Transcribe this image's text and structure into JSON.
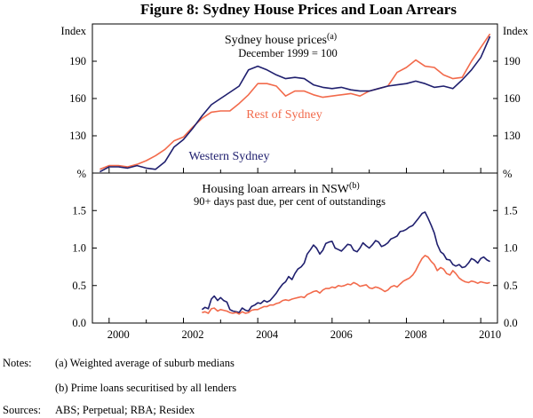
{
  "figure": {
    "title": "Figure 8: Sydney House Prices and Loan Arrears",
    "x_tick_labels": [
      "2000",
      "2002",
      "2004",
      "2006",
      "2008",
      "2010"
    ]
  },
  "notes": {
    "label": "Notes:",
    "items": [
      "(a) Weighted average of suburb medians",
      "(b) Prime loans securitised by all lenders"
    ]
  },
  "sources": {
    "label": "Sources:",
    "text": "ABS; Perpetual; RBA; Residex"
  },
  "colors": {
    "western": "#1f1f6e",
    "rest": "#f26a4b",
    "axis": "#000000"
  },
  "chart_data": [
    {
      "type": "line",
      "title": "Sydney house prices",
      "title_footnote": "(a)",
      "subtitle": "December 1999 = 100",
      "ylabel_left": "Index",
      "ylabel_right": "Index",
      "ylim": [
        100,
        220
      ],
      "yticks": [
        130,
        160,
        190
      ],
      "xlim": [
        1999.55,
        2010.45
      ],
      "series": [
        {
          "name": "Rest of Sydney",
          "color": "#f26a4b",
          "x": [
            1999.75,
            2000.0,
            2000.25,
            2000.5,
            2000.75,
            2001.0,
            2001.25,
            2001.5,
            2001.75,
            2002.0,
            2002.25,
            2002.5,
            2002.75,
            2003.0,
            2003.25,
            2003.5,
            2003.75,
            2004.0,
            2004.25,
            2004.5,
            2004.75,
            2005.0,
            2005.25,
            2005.5,
            2005.75,
            2006.0,
            2006.25,
            2006.5,
            2006.75,
            2007.0,
            2007.25,
            2007.5,
            2007.75,
            2008.0,
            2008.25,
            2008.5,
            2008.75,
            2009.0,
            2009.25,
            2009.5,
            2009.75,
            2010.0,
            2010.25
          ],
          "values": [
            103,
            106,
            106,
            105,
            107,
            110,
            114,
            119,
            126,
            129,
            137,
            144,
            149,
            150,
            150,
            156,
            163,
            172,
            172,
            170,
            162,
            166,
            166,
            163,
            161,
            162,
            163,
            164,
            162,
            166,
            168,
            170,
            181,
            185,
            191,
            186,
            185,
            179,
            176,
            177,
            190,
            201,
            212
          ]
        },
        {
          "name": "Western Sydney",
          "color": "#1f1f6e",
          "x": [
            1999.75,
            2000.0,
            2000.25,
            2000.5,
            2000.75,
            2001.0,
            2001.25,
            2001.5,
            2001.75,
            2002.0,
            2002.25,
            2002.5,
            2002.75,
            2003.0,
            2003.25,
            2003.5,
            2003.75,
            2004.0,
            2004.25,
            2004.5,
            2004.75,
            2005.0,
            2005.25,
            2005.5,
            2005.75,
            2006.0,
            2006.25,
            2006.5,
            2006.75,
            2007.0,
            2007.25,
            2007.5,
            2007.75,
            2008.0,
            2008.25,
            2008.5,
            2008.75,
            2009.0,
            2009.25,
            2009.5,
            2009.75,
            2010.0,
            2010.25
          ],
          "values": [
            101,
            105,
            105,
            104,
            106,
            104,
            103,
            109,
            121,
            127,
            136,
            146,
            155,
            160,
            165,
            170,
            183,
            186,
            183,
            179,
            176,
            177,
            176,
            171,
            169,
            168,
            169,
            167,
            166,
            166,
            168,
            170,
            171,
            172,
            174,
            172,
            169,
            170,
            168,
            175,
            183,
            193,
            210
          ]
        }
      ]
    },
    {
      "type": "line",
      "title": "Housing loan arrears in NSW",
      "title_footnote": "(b)",
      "subtitle": "90+ days past due, per cent of outstandings",
      "ylabel_left": "%",
      "ylabel_right": "%",
      "ylim": [
        0,
        2.0
      ],
      "yticks": [
        0.0,
        0.5,
        1.0,
        1.5
      ],
      "ytick_labels": [
        "0.0",
        "0.5",
        "1.0",
        "1.5"
      ],
      "xlim": [
        1999.55,
        2010.45
      ],
      "series": [
        {
          "name": "Western Sydney",
          "color": "#1f1f6e",
          "x": [
            2002.5,
            2002.58,
            2002.67,
            2002.75,
            2002.83,
            2002.92,
            2003.0,
            2003.08,
            2003.17,
            2003.25,
            2003.33,
            2003.42,
            2003.5,
            2003.58,
            2003.67,
            2003.75,
            2003.83,
            2003.92,
            2004.0,
            2004.08,
            2004.17,
            2004.25,
            2004.33,
            2004.42,
            2004.5,
            2004.58,
            2004.67,
            2004.75,
            2004.83,
            2004.92,
            2005.0,
            2005.08,
            2005.17,
            2005.25,
            2005.33,
            2005.42,
            2005.5,
            2005.58,
            2005.67,
            2005.75,
            2005.83,
            2005.92,
            2006.0,
            2006.08,
            2006.17,
            2006.25,
            2006.33,
            2006.42,
            2006.5,
            2006.58,
            2006.67,
            2006.75,
            2006.83,
            2006.92,
            2007.0,
            2007.08,
            2007.17,
            2007.25,
            2007.33,
            2007.42,
            2007.5,
            2007.58,
            2007.67,
            2007.75,
            2007.83,
            2007.92,
            2008.0,
            2008.08,
            2008.17,
            2008.25,
            2008.33,
            2008.42,
            2008.5,
            2008.58,
            2008.67,
            2008.75,
            2008.83,
            2008.92,
            2009.0,
            2009.08,
            2009.17,
            2009.25,
            2009.33,
            2009.42,
            2009.5,
            2009.58,
            2009.67,
            2009.75,
            2009.83,
            2009.92,
            2010.0,
            2010.08,
            2010.17,
            2010.25
          ],
          "values": [
            0.18,
            0.21,
            0.19,
            0.32,
            0.36,
            0.3,
            0.34,
            0.3,
            0.28,
            0.18,
            0.16,
            0.15,
            0.14,
            0.2,
            0.17,
            0.16,
            0.22,
            0.24,
            0.27,
            0.26,
            0.3,
            0.28,
            0.3,
            0.35,
            0.4,
            0.46,
            0.52,
            0.55,
            0.62,
            0.58,
            0.66,
            0.72,
            0.75,
            0.8,
            0.92,
            0.98,
            1.04,
            1.0,
            0.92,
            0.97,
            1.06,
            1.08,
            1.09,
            1.0,
            0.98,
            0.96,
            1.0,
            1.05,
            1.04,
            0.97,
            0.95,
            1.0,
            1.07,
            1.03,
            1.0,
            1.04,
            1.1,
            1.08,
            1.02,
            1.04,
            1.07,
            1.12,
            1.14,
            1.16,
            1.22,
            1.23,
            1.25,
            1.28,
            1.3,
            1.35,
            1.4,
            1.46,
            1.48,
            1.4,
            1.3,
            1.2,
            1.05,
            0.95,
            0.92,
            0.85,
            0.84,
            0.78,
            0.76,
            0.78,
            0.74,
            0.75,
            0.8,
            0.86,
            0.84,
            0.8,
            0.86,
            0.88,
            0.84,
            0.82
          ]
        },
        {
          "name": "Rest of Sydney",
          "color": "#f26a4b",
          "x": [
            2002.5,
            2002.58,
            2002.67,
            2002.75,
            2002.83,
            2002.92,
            2003.0,
            2003.08,
            2003.17,
            2003.25,
            2003.33,
            2003.42,
            2003.5,
            2003.58,
            2003.67,
            2003.75,
            2003.83,
            2003.92,
            2004.0,
            2004.08,
            2004.17,
            2004.25,
            2004.33,
            2004.42,
            2004.5,
            2004.58,
            2004.67,
            2004.75,
            2004.83,
            2004.92,
            2005.0,
            2005.08,
            2005.17,
            2005.25,
            2005.33,
            2005.42,
            2005.5,
            2005.58,
            2005.67,
            2005.75,
            2005.83,
            2005.92,
            2006.0,
            2006.08,
            2006.17,
            2006.25,
            2006.33,
            2006.42,
            2006.5,
            2006.58,
            2006.67,
            2006.75,
            2006.83,
            2006.92,
            2007.0,
            2007.08,
            2007.17,
            2007.25,
            2007.33,
            2007.42,
            2007.5,
            2007.58,
            2007.67,
            2007.75,
            2007.83,
            2007.92,
            2008.0,
            2008.08,
            2008.17,
            2008.25,
            2008.33,
            2008.42,
            2008.5,
            2008.58,
            2008.67,
            2008.75,
            2008.83,
            2008.92,
            2009.0,
            2009.08,
            2009.17,
            2009.25,
            2009.33,
            2009.42,
            2009.5,
            2009.58,
            2009.67,
            2009.75,
            2009.83,
            2009.92,
            2010.0,
            2010.08,
            2010.17,
            2010.25
          ],
          "values": [
            0.14,
            0.15,
            0.13,
            0.19,
            0.2,
            0.16,
            0.18,
            0.17,
            0.16,
            0.14,
            0.13,
            0.14,
            0.12,
            0.15,
            0.13,
            0.14,
            0.17,
            0.18,
            0.18,
            0.2,
            0.22,
            0.22,
            0.24,
            0.24,
            0.26,
            0.27,
            0.3,
            0.31,
            0.3,
            0.32,
            0.33,
            0.34,
            0.35,
            0.34,
            0.38,
            0.4,
            0.42,
            0.43,
            0.4,
            0.44,
            0.46,
            0.46,
            0.48,
            0.47,
            0.5,
            0.49,
            0.5,
            0.52,
            0.51,
            0.54,
            0.52,
            0.49,
            0.5,
            0.51,
            0.47,
            0.46,
            0.48,
            0.47,
            0.45,
            0.42,
            0.44,
            0.48,
            0.5,
            0.48,
            0.52,
            0.56,
            0.58,
            0.6,
            0.64,
            0.7,
            0.78,
            0.86,
            0.9,
            0.88,
            0.82,
            0.78,
            0.7,
            0.74,
            0.72,
            0.66,
            0.64,
            0.7,
            0.66,
            0.6,
            0.57,
            0.55,
            0.54,
            0.56,
            0.55,
            0.53,
            0.55,
            0.54,
            0.53,
            0.54
          ]
        }
      ]
    }
  ]
}
